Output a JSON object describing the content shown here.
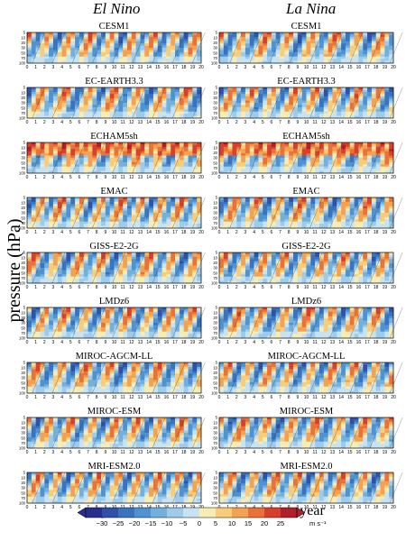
{
  "figure": {
    "column_titles": [
      "El Nino",
      "La Nina"
    ],
    "y_axis_label": "pressure (hPa)",
    "x_axis_label": "year",
    "colorbar_unit": "m s⁻¹",
    "colorbar_ticks": [
      "−30",
      "−25",
      "−20",
      "−15",
      "−10",
      "−5",
      "0",
      "5",
      "10",
      "15",
      "20",
      "25"
    ],
    "colorbar_colors": [
      "#2a2f8f",
      "#2f52a8",
      "#3a72bd",
      "#4f92cf",
      "#74b0de",
      "#9dcbe9",
      "#c7e3f2",
      "#f6ecb6",
      "#f9cc7a",
      "#f4a151",
      "#e9713a",
      "#d83f2c",
      "#b0202a"
    ]
  },
  "chart_data": {
    "type": "heatmap",
    "x_ticks": [
      "0",
      "1",
      "2",
      "3",
      "4",
      "5",
      "6",
      "7",
      "8",
      "9",
      "10",
      "11",
      "12",
      "13",
      "14",
      "15",
      "16",
      "17",
      "18",
      "19",
      "20"
    ],
    "y_ticks": [
      "5",
      "10",
      "20",
      "30",
      "50",
      "70",
      "100"
    ],
    "xlim": [
      0,
      20
    ],
    "ylim": [
      100,
      5
    ],
    "panels": [
      {
        "model": "CESM1",
        "condition": "El Nino"
      },
      {
        "model": "CESM1",
        "condition": "La Nina"
      },
      {
        "model": "EC-EARTH3.3",
        "condition": "El Nino"
      },
      {
        "model": "EC-EARTH3.3",
        "condition": "La Nina"
      },
      {
        "model": "ECHAM5sh",
        "condition": "El Nino"
      },
      {
        "model": "ECHAM5sh",
        "condition": "La Nina"
      },
      {
        "model": "EMAC",
        "condition": "El Nino"
      },
      {
        "model": "EMAC",
        "condition": "La Nina"
      },
      {
        "model": "GISS-E2-2G",
        "condition": "El Nino"
      },
      {
        "model": "GISS-E2-2G",
        "condition": "La Nina"
      },
      {
        "model": "LMDz6",
        "condition": "El Nino"
      },
      {
        "model": "LMDz6",
        "condition": "La Nina"
      },
      {
        "model": "MIROC-AGCM-LL",
        "condition": "El Nino"
      },
      {
        "model": "MIROC-AGCM-LL",
        "condition": "La Nina"
      },
      {
        "model": "MIROC-ESM",
        "condition": "El Nino"
      },
      {
        "model": "MIROC-ESM",
        "condition": "La Nina"
      },
      {
        "model": "MRI-ESM2.0",
        "condition": "El Nino"
      },
      {
        "model": "MRI-ESM2.0",
        "condition": "La Nina"
      }
    ]
  }
}
